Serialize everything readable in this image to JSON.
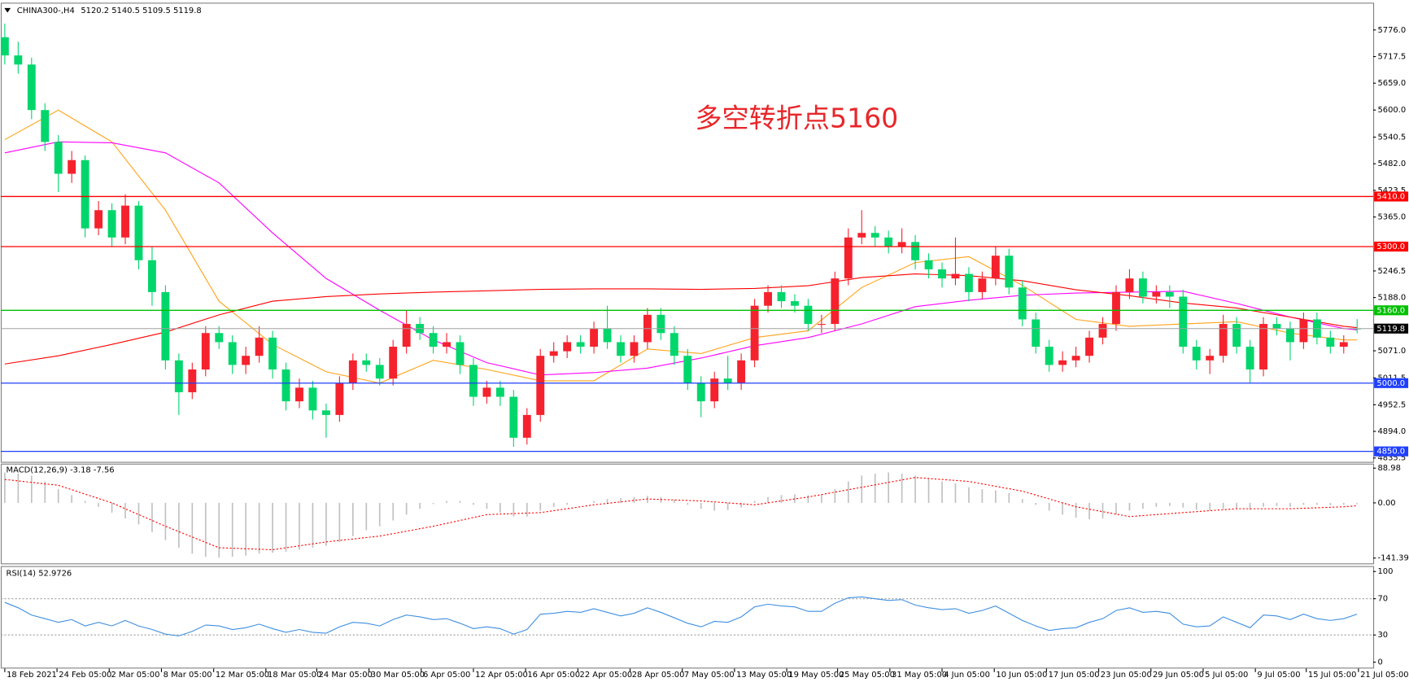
{
  "chart_data": [
    {
      "type": "candlestick",
      "title": "CHINA300-,H4",
      "annotation": "多空转折点5160",
      "xlim": [
        -0.3,
        102.2
      ],
      "xticks": [
        {
          "value": 0,
          "label": "18 Feb 2021"
        },
        {
          "value": 3.9,
          "label": "24 Feb 05:00"
        },
        {
          "value": 7.8,
          "label": "2 Mar 05:00"
        },
        {
          "value": 11.7,
          "label": "8 Mar 05:00"
        },
        {
          "value": 15.6,
          "label": "12 Mar 05:00"
        },
        {
          "value": 19.5,
          "label": "18 Mar 05:00"
        },
        {
          "value": 23.3,
          "label": "24 Mar 05:00"
        },
        {
          "value": 27.2,
          "label": "30 Mar 05:00"
        },
        {
          "value": 31.1,
          "label": "6 Apr 05:00"
        },
        {
          "value": 35.0,
          "label": "12 Apr 05:00"
        },
        {
          "value": 38.9,
          "label": "16 Apr 05:00"
        },
        {
          "value": 42.8,
          "label": "22 Apr 05:00"
        },
        {
          "value": 46.7,
          "label": "28 Apr 05:00"
        },
        {
          "value": 50.6,
          "label": "7 May 05:00"
        },
        {
          "value": 54.5,
          "label": "13 May 05:00"
        },
        {
          "value": 58.4,
          "label": "19 May 05:00"
        },
        {
          "value": 62.2,
          "label": "25 May 05:00"
        },
        {
          "value": 66.1,
          "label": "31 May 05:00"
        },
        {
          "value": 70.0,
          "label": "4 Jun 05:00"
        },
        {
          "value": 73.9,
          "label": "10 Jun 05:00"
        },
        {
          "value": 77.8,
          "label": "17 Jun 05:00"
        },
        {
          "value": 81.7,
          "label": "23 Jun 05:00"
        },
        {
          "value": 85.6,
          "label": "29 Jun 05:00"
        },
        {
          "value": 89.5,
          "label": "5 Jul 05:00"
        },
        {
          "value": 93.4,
          "label": "9 Jul 05:00"
        },
        {
          "value": 97.2,
          "label": "15 Jul 05:00"
        },
        {
          "value": 101.1,
          "label": "21 Jul 05:00"
        }
      ],
      "ylim": [
        4827,
        5826
      ],
      "yticks": [
        {
          "value": 5776,
          "label": "5776.0"
        },
        {
          "value": 5717.5,
          "label": "5717.5"
        },
        {
          "value": 5659,
          "label": "5659.0"
        },
        {
          "value": 5600,
          "label": "5600.0"
        },
        {
          "value": 5540.5,
          "label": "5540.5"
        },
        {
          "value": 5482,
          "label": "5482.0"
        },
        {
          "value": 5423.5,
          "label": "5423.5"
        },
        {
          "value": 5365,
          "label": "5365.0"
        },
        {
          "value": 5246.5,
          "label": "5246.5"
        },
        {
          "value": 5188,
          "label": "5188.0"
        },
        {
          "value": 5071,
          "label": "5071.0"
        },
        {
          "value": 5011.5,
          "label": "5011.5"
        },
        {
          "value": 4952.5,
          "label": "4952.5"
        },
        {
          "value": 4894,
          "label": "4894.0"
        },
        {
          "value": 4835.5,
          "label": "4835.5"
        }
      ],
      "up_color": "#f5222d",
      "down_color": "#00d66b",
      "open": [
        5760,
        5720,
        5700,
        5600,
        5530,
        5460,
        5490,
        5340,
        5380,
        5320,
        5390,
        5270,
        5200,
        5050,
        4980,
        5030,
        5110,
        5090,
        5040,
        5060,
        5100,
        5030,
        4960,
        4990,
        4940,
        4930,
        5000,
        5050,
        5040,
        5010,
        5080,
        5130,
        5110,
        5080,
        5090,
        5040,
        4970,
        4990,
        4970,
        4880,
        4930,
        5060,
        5070,
        5090,
        5080,
        5120,
        5090,
        5060,
        5090,
        5150,
        5110,
        5060,
        5000,
        4960,
        5010,
        5000,
        5050,
        5170,
        5200,
        5180,
        5170,
        5130,
        5130,
        5230,
        5320,
        5330,
        5320,
        5300,
        5310,
        5270,
        5250,
        5230,
        5240,
        5200,
        5230,
        5280,
        5210,
        5140,
        5080,
        5040,
        5050,
        5060,
        5100,
        5130,
        5200,
        5230,
        5190,
        5200,
        5190,
        5080,
        5050,
        5060,
        5130,
        5080,
        5030,
        5130,
        5120,
        5090,
        5140,
        5100,
        5080,
        5120.2
      ],
      "high": [
        5790,
        5750,
        5715,
        5615,
        5545,
        5510,
        5500,
        5400,
        5395,
        5415,
        5400,
        5300,
        5215,
        5065,
        5045,
        5125,
        5125,
        5105,
        5080,
        5125,
        5115,
        5045,
        5010,
        5005,
        4955,
        5015,
        5065,
        5065,
        5055,
        5095,
        5160,
        5145,
        5125,
        5110,
        5105,
        5055,
        5005,
        5005,
        4985,
        4945,
        5075,
        5090,
        5105,
        5105,
        5135,
        5170,
        5105,
        5105,
        5165,
        5165,
        5125,
        5075,
        5015,
        5025,
        5060,
        5065,
        5185,
        5215,
        5215,
        5195,
        5185,
        5150,
        5245,
        5340,
        5380,
        5345,
        5335,
        5340,
        5325,
        5285,
        5265,
        5320,
        5255,
        5245,
        5300,
        5295,
        5225,
        5155,
        5095,
        5070,
        5080,
        5115,
        5145,
        5215,
        5250,
        5245,
        5215,
        5215,
        5205,
        5095,
        5075,
        5150,
        5145,
        5095,
        5145,
        5145,
        5135,
        5155,
        5155,
        5115,
        5105,
        5140.5
      ],
      "low": [
        5700,
        5680,
        5580,
        5510,
        5420,
        5440,
        5320,
        5325,
        5300,
        5305,
        5250,
        5170,
        5030,
        4930,
        4965,
        5015,
        5075,
        5020,
        5020,
        5045,
        5010,
        4940,
        4945,
        4920,
        4880,
        4915,
        4985,
        5025,
        4995,
        4995,
        5065,
        5095,
        5065,
        5065,
        5020,
        4950,
        4955,
        4950,
        4860,
        4865,
        4915,
        5045,
        5055,
        5065,
        5065,
        5075,
        5045,
        5045,
        5075,
        5095,
        5040,
        4985,
        4925,
        4945,
        4985,
        4985,
        5035,
        5155,
        5165,
        5155,
        5115,
        5110,
        5115,
        5215,
        5305,
        5300,
        5285,
        5285,
        5250,
        5230,
        5210,
        5215,
        5180,
        5185,
        5215,
        5195,
        5125,
        5065,
        5025,
        5025,
        5035,
        5045,
        5085,
        5115,
        5185,
        5175,
        5175,
        5165,
        5065,
        5030,
        5020,
        5045,
        5065,
        5000,
        5015,
        5105,
        5050,
        5075,
        5085,
        5065,
        5065,
        5109.5
      ],
      "close": [
        5720,
        5700,
        5600,
        5530,
        5460,
        5490,
        5340,
        5380,
        5320,
        5390,
        5270,
        5200,
        5050,
        4980,
        5030,
        5110,
        5090,
        5040,
        5060,
        5100,
        5030,
        4960,
        4990,
        4940,
        4930,
        5000,
        5050,
        5040,
        5010,
        5080,
        5130,
        5110,
        5080,
        5090,
        5040,
        4970,
        4990,
        4970,
        4880,
        4930,
        5060,
        5070,
        5090,
        5080,
        5120,
        5090,
        5060,
        5090,
        5150,
        5110,
        5060,
        5000,
        4960,
        5010,
        5000,
        5050,
        5170,
        5200,
        5180,
        5170,
        5130,
        5130,
        5230,
        5320,
        5330,
        5320,
        5300,
        5310,
        5270,
        5250,
        5230,
        5240,
        5200,
        5230,
        5280,
        5210,
        5140,
        5080,
        5040,
        5050,
        5060,
        5100,
        5130,
        5200,
        5230,
        5190,
        5200,
        5190,
        5080,
        5050,
        5060,
        5130,
        5080,
        5030,
        5130,
        5120,
        5090,
        5140,
        5100,
        5080,
        5090,
        5119.8
      ],
      "line_x": [
        0,
        4,
        8,
        12,
        16,
        20,
        24,
        28,
        32,
        36,
        40,
        44,
        48,
        52,
        56,
        60,
        64,
        68,
        72,
        76,
        80,
        84,
        88,
        92,
        96,
        100,
        101
      ],
      "lines": [
        {
          "color": "#ffa31a",
          "values": [
            5535,
            5600,
            5530,
            5380,
            5180,
            5085,
            5025,
            5000,
            5050,
            5030,
            5005,
            5005,
            5075,
            5065,
            5100,
            5115,
            5210,
            5265,
            5278,
            5215,
            5140,
            5125,
            5130,
            5135,
            5110,
            5095,
            5095
          ]
        },
        {
          "color": "#ff00ff",
          "values": [
            5506,
            5530,
            5528,
            5506,
            5440,
            5330,
            5230,
            5160,
            5095,
            5045,
            5018,
            5023,
            5033,
            5055,
            5082,
            5100,
            5130,
            5168,
            5182,
            5193,
            5198,
            5200,
            5202,
            5175,
            5145,
            5120,
            5117
          ]
        },
        {
          "color": "#ff0000",
          "values": [
            5042,
            5060,
            5085,
            5112,
            5150,
            5180,
            5190,
            5196,
            5200,
            5203,
            5206,
            5207,
            5207,
            5206,
            5208,
            5214,
            5232,
            5240,
            5236,
            5225,
            5205,
            5192,
            5176,
            5165,
            5145,
            5125,
            5122
          ]
        }
      ],
      "levels": [
        {
          "value": 5410,
          "label": "5410.0",
          "color": "#ff0000"
        },
        {
          "value": 5300,
          "label": "5300.0",
          "color": "#ff0000"
        },
        {
          "value": 5160,
          "label": "5160.0",
          "color": "#00c000"
        },
        {
          "value": 5000,
          "label": "5000.0",
          "color": "#1f3fff"
        },
        {
          "value": 4850,
          "label": "4850.0",
          "color": "#1f3fff"
        }
      ]
    },
    {
      "type": "macd",
      "title": "MACD(12,26,9)",
      "ylim": [
        -155,
        100.5
      ],
      "yticks": [
        88.98,
        {
          "value": 0,
          "label": "0.00"
        },
        -141.39
      ],
      "color": "#c0c0c0",
      "values": [
        78,
        75,
        70,
        55,
        35,
        20,
        5,
        -10,
        -25,
        -40,
        -55,
        -75,
        -95,
        -115,
        -130,
        -138,
        -140,
        -138,
        -135,
        -130,
        -128,
        -125,
        -120,
        -115,
        -110,
        -100,
        -85,
        -70,
        -60,
        -45,
        -30,
        -15,
        -3,
        5,
        5,
        -5,
        -15,
        -25,
        -35,
        -35,
        -20,
        -10,
        -5,
        0,
        5,
        10,
        12,
        15,
        18,
        15,
        8,
        -5,
        -15,
        -20,
        -18,
        -12,
        5,
        15,
        20,
        22,
        20,
        22,
        35,
        55,
        70,
        75,
        78,
        75,
        70,
        62,
        55,
        50,
        40,
        35,
        32,
        25,
        10,
        -5,
        -20,
        -30,
        -38,
        -42,
        -40,
        -30,
        -20,
        -15,
        -10,
        -8,
        -12,
        -18,
        -20,
        -15,
        -15,
        -18,
        -10,
        -8,
        -10,
        -5,
        -5,
        -6,
        -5,
        -3.18
      ],
      "signal": {
        "color": "#ff0000",
        "values": [
          60,
          45,
          0,
          -60,
          -115,
          -120,
          -100,
          -85,
          -60,
          -30,
          -25,
          -5,
          10,
          5,
          -5,
          15,
          40,
          65,
          55,
          30,
          -10,
          -35,
          -25,
          -15,
          -15,
          -10,
          -7.56
        ]
      }
    },
    {
      "type": "rsi",
      "title": "RSI(14)",
      "ylim": [
        -5,
        105
      ],
      "yticks": [
        100,
        70,
        30,
        0
      ],
      "levels": [
        70,
        30
      ],
      "color": "#3f8fe0",
      "values": [
        66,
        60,
        52,
        48,
        44,
        47,
        40,
        44,
        40,
        46,
        40,
        36,
        31,
        29,
        34,
        41,
        40,
        36,
        38,
        42,
        37,
        33,
        36,
        33,
        32,
        39,
        44,
        43,
        40,
        47,
        52,
        50,
        47,
        48,
        43,
        37,
        39,
        37,
        31,
        36,
        53,
        54,
        56,
        55,
        59,
        55,
        51,
        54,
        60,
        55,
        49,
        43,
        39,
        45,
        44,
        50,
        61,
        64,
        62,
        61,
        56,
        56,
        65,
        71,
        72,
        70,
        68,
        69,
        63,
        60,
        58,
        59,
        54,
        57,
        62,
        54,
        46,
        40,
        35,
        37,
        38,
        44,
        48,
        57,
        60,
        55,
        56,
        54,
        42,
        39,
        40,
        50,
        44,
        38,
        52,
        51,
        47,
        53,
        48,
        46,
        48,
        52.9726
      ]
    }
  ]
}
